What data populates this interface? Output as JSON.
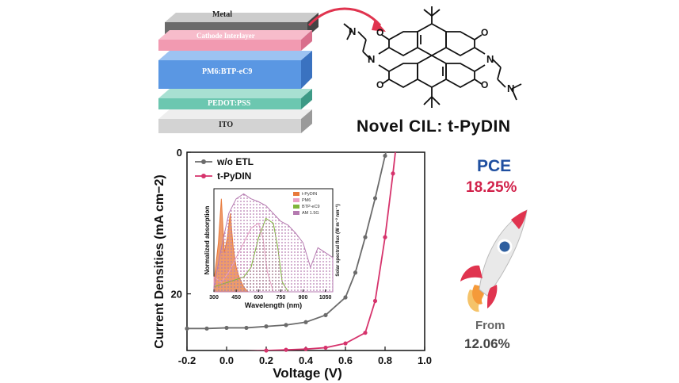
{
  "device_stack": {
    "layers": [
      "Metal",
      "Cathode Interlayer",
      "PM6:BTP-eC9",
      "PEDOT:PSS",
      "ITO"
    ]
  },
  "molecule": {
    "title": "Novel CIL: t-PyDIN",
    "atoms": {
      "oxygen": "O",
      "nitrogen": "N"
    }
  },
  "pce": {
    "title": "PCE",
    "value": "18.25%",
    "from_label": "From",
    "from_value": "12.06%"
  },
  "colors": {
    "metal": "#555555",
    "cathode": "#f28fa8",
    "active": "#4f8fe0",
    "pedot": "#5dbfa8",
    "ito": "#cfcfcf",
    "arrow": "#e0344f",
    "wo_etl": "#6b6b6b",
    "t_pydin": "#d6336c"
  },
  "chart_data": [
    {
      "type": "line",
      "xlabel": "Voltage (V)",
      "ylabel": "Current Densities (mA cm−2)",
      "xlim": [
        -0.2,
        1.0
      ],
      "ylim": [
        0,
        28
      ],
      "y_inverted": true,
      "x_ticks": [
        "-0.2",
        "0.0",
        "0.2",
        "0.4",
        "0.6",
        "0.8",
        "1.0"
      ],
      "y_ticks": [
        "0",
        "20"
      ],
      "legend_position": "top-left",
      "series": [
        {
          "name": "w/o ETL",
          "color": "#6b6b6b",
          "x": [
            -0.2,
            -0.1,
            0.0,
            0.1,
            0.2,
            0.3,
            0.4,
            0.5,
            0.6,
            0.65,
            0.7,
            0.75,
            0.8,
            0.84
          ],
          "y": [
            24.9,
            24.9,
            24.8,
            24.8,
            24.6,
            24.4,
            24.0,
            23.0,
            20.5,
            17.0,
            12.0,
            6.5,
            0.5,
            -4.0
          ]
        },
        {
          "name": "t-PyDIN",
          "color": "#d6336c",
          "x": [
            -0.2,
            -0.1,
            0.0,
            0.1,
            0.2,
            0.3,
            0.4,
            0.5,
            0.6,
            0.7,
            0.75,
            0.8,
            0.84,
            0.86
          ],
          "y": [
            28.2,
            28.2,
            28.1,
            28.1,
            28.0,
            27.9,
            27.8,
            27.6,
            27.0,
            25.5,
            21.0,
            12.0,
            3.0,
            -2.0
          ]
        }
      ]
    },
    {
      "type": "area",
      "xlabel": "Wavelength (nm)",
      "ylabel": "Normalized absorption",
      "y2label": "Solar spectral flux (W m⁻² nm⁻¹)",
      "xlim": [
        300,
        1100
      ],
      "x_ticks": [
        "300",
        "450",
        "600",
        "750",
        "900",
        "1050"
      ],
      "legend_position": "top-right",
      "series": [
        {
          "name": "t-PyDIN",
          "color": "#e8793a",
          "x": [
            300,
            330,
            350,
            370,
            390,
            410,
            430,
            450,
            470,
            490,
            510,
            530
          ],
          "y": [
            0.1,
            0.5,
            0.95,
            0.4,
            0.55,
            0.8,
            0.45,
            0.25,
            0.15,
            0.08,
            0.03,
            0.0
          ]
        },
        {
          "name": "PM6",
          "color": "#e9a0c4",
          "x": [
            300,
            350,
            400,
            450,
            500,
            550,
            600,
            630,
            660,
            700
          ],
          "y": [
            0.15,
            0.1,
            0.2,
            0.35,
            0.5,
            0.65,
            0.7,
            0.55,
            0.2,
            0.0
          ]
        },
        {
          "name": "BTP-eC9",
          "color": "#7fb53a",
          "x": [
            300,
            400,
            500,
            550,
            600,
            650,
            700,
            730,
            760,
            800
          ],
          "y": [
            0.05,
            0.1,
            0.15,
            0.25,
            0.55,
            0.75,
            0.7,
            0.45,
            0.1,
            0.0
          ]
        },
        {
          "name": "AM 1.5G",
          "color": "#b57ab0",
          "x": [
            300,
            350,
            400,
            450,
            500,
            550,
            600,
            650,
            700,
            750,
            800,
            850,
            900,
            950,
            1000,
            1050,
            1100
          ],
          "y": [
            0.05,
            0.45,
            0.8,
            0.95,
            1.0,
            0.95,
            0.92,
            0.88,
            0.8,
            0.72,
            0.68,
            0.6,
            0.5,
            0.25,
            0.45,
            0.4,
            0.35
          ]
        }
      ]
    }
  ]
}
